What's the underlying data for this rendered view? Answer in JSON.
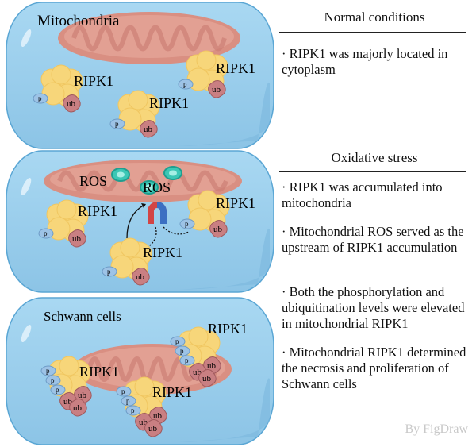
{
  "panels": {
    "normal": {
      "cell_label": "Mitochondria",
      "protein_label": "RIPK1"
    },
    "oxidative": {
      "ros_label": "ROS",
      "protein_label": "RIPK1"
    },
    "schwann": {
      "cell_label": "Schwann cells",
      "protein_label": "RIPK1"
    }
  },
  "marks": {
    "phospho": "p",
    "ubiquitin": "ub"
  },
  "colors": {
    "cell": "#9ccfec",
    "mitochondria": "#e2a093",
    "ripk1": "#f7d67a",
    "phospho": "#9dc3e6",
    "ubiquitin": "#c97f82",
    "ros": "#3cc7b5"
  },
  "side": {
    "normal_title": "Normal conditions",
    "normal_bullets": [
      "· RIPK1 was majorly located in cytoplasm"
    ],
    "oxidative_title": "Oxidative stress",
    "oxidative_bullets": [
      "· RIPK1 was accumulated into mitochondria",
      "· Mitochondrial ROS served as the upstream of RIPK1 accumulation",
      "· Both the phosphorylation and ubiquitination levels were elevated in mitochondrial RIPK1",
      "· Mitochondrial RIPK1 determined the necrosis and proliferation of Schwann cells"
    ]
  },
  "credit": "By FigDraw"
}
